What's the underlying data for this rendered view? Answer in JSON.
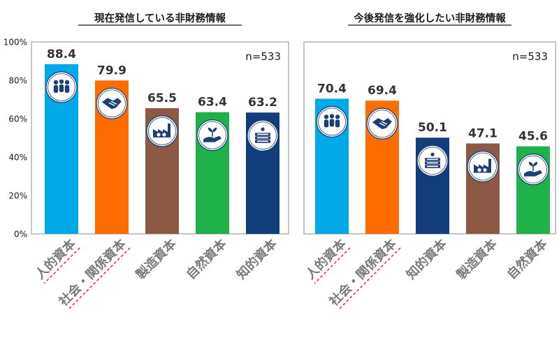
{
  "chart_data": [
    {
      "type": "bar",
      "title": "現在発信している非財務情報",
      "n_label": "n=533",
      "categories": [
        "人的資本",
        "社会・関係資本",
        "製造資本",
        "自然資本",
        "知的資本"
      ],
      "values": [
        88.4,
        79.9,
        65.5,
        63.4,
        63.2
      ],
      "value_labels": [
        "88.4",
        "79.9",
        "65.5",
        "63.4",
        "63.2"
      ],
      "bar_colors": [
        "#00a9e8",
        "#ff6d00",
        "#8c5a44",
        "#1fb24a",
        "#123e7c"
      ],
      "icons": [
        "people-icon",
        "handshake-icon",
        "factory-icon",
        "plant-hand-icon",
        "books-icon"
      ],
      "ylim": [
        0,
        100
      ],
      "yticks": [
        "0%",
        "20%",
        "40%",
        "60%",
        "80%",
        "100%"
      ],
      "underlined_categories": [
        0,
        1
      ]
    },
    {
      "type": "bar",
      "title": "今後発信を強化したい非財務情報",
      "n_label": "n=533",
      "categories": [
        "人的資本",
        "社会・関係資本",
        "知的資本",
        "製造資本",
        "自然資本"
      ],
      "values": [
        70.4,
        69.4,
        50.1,
        47.1,
        45.6
      ],
      "value_labels": [
        "70.4",
        "69.4",
        "50.1",
        "47.1",
        "45.6"
      ],
      "bar_colors": [
        "#00a9e8",
        "#ff6d00",
        "#123e7c",
        "#8c5a44",
        "#1fb24a"
      ],
      "icons": [
        "people-icon",
        "handshake-icon",
        "books-icon",
        "factory-icon",
        "plant-hand-icon"
      ],
      "ylim": [
        0,
        100
      ],
      "yticks": [],
      "underlined_categories": [
        0,
        1
      ]
    }
  ]
}
